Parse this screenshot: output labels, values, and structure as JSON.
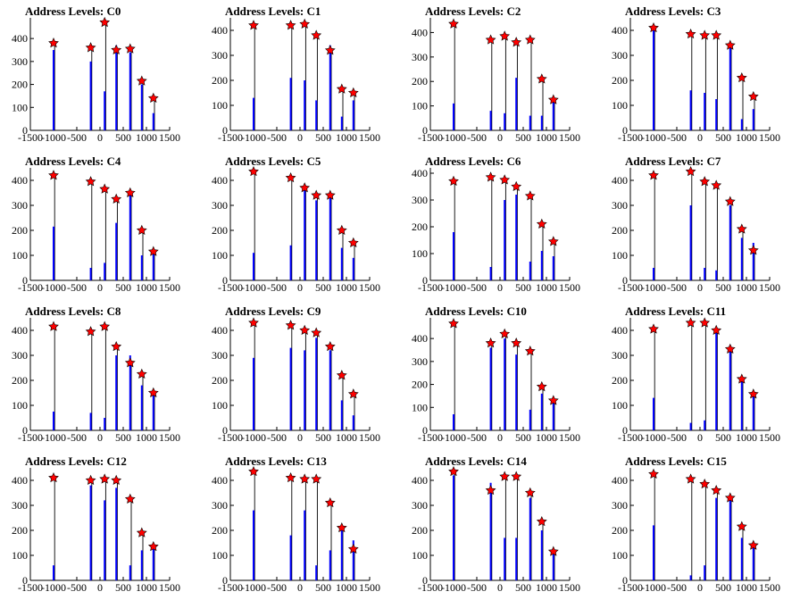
{
  "colors": {
    "bar": "#0000ff",
    "outline": "#000000",
    "marker": "#ff0000",
    "marker_edge": "#000000"
  },
  "marker_icon": "red-star-marker",
  "chart_data": [
    {
      "type": "bar",
      "title": "Address Levels: C0",
      "xlim": [
        -1500,
        1500
      ],
      "xticks": [
        "-1500",
        "-1000",
        "-500",
        "0",
        "500",
        "1000",
        "1500"
      ],
      "ylim": [
        0,
        490
      ],
      "yticks": [
        "0",
        "100",
        "200",
        "300",
        "400"
      ],
      "grid": false,
      "x": [
        -1000,
        -200,
        100,
        350,
        650,
        900,
        1150
      ],
      "peaks": [
        380,
        360,
        470,
        350,
        355,
        215,
        140
      ],
      "blue": [
        350,
        300,
        170,
        370,
        340,
        200,
        75
      ]
    },
    {
      "type": "bar",
      "title": "Address Levels: C1",
      "xlim": [
        -1500,
        1500
      ],
      "xticks": [
        "-1500",
        "-1000",
        "-500",
        "0",
        "500",
        "1000",
        "1500"
      ],
      "ylim": [
        0,
        450
      ],
      "yticks": [
        "0",
        "100",
        "200",
        "300",
        "400"
      ],
      "grid": false,
      "x": [
        -1000,
        -200,
        100,
        350,
        650,
        900,
        1150
      ],
      "peaks": [
        420,
        420,
        425,
        380,
        320,
        165,
        150
      ],
      "blue": [
        130,
        210,
        200,
        120,
        340,
        55,
        120
      ]
    },
    {
      "type": "bar",
      "title": "Address Levels: C2",
      "xlim": [
        -1500,
        1500
      ],
      "xticks": [
        "-1500",
        "-1000",
        "-500",
        "0",
        "500",
        "1000",
        "1500"
      ],
      "ylim": [
        0,
        460
      ],
      "yticks": [
        "0",
        "100",
        "200",
        "300",
        "400"
      ],
      "grid": false,
      "x": [
        -1000,
        -200,
        100,
        350,
        650,
        900,
        1150
      ],
      "peaks": [
        435,
        370,
        385,
        360,
        370,
        210,
        125
      ],
      "blue": [
        110,
        80,
        70,
        215,
        60,
        60,
        120
      ]
    },
    {
      "type": "bar",
      "title": "Address Levels: C3",
      "xlim": [
        -1500,
        1500
      ],
      "xticks": [
        "-1500",
        "-1000",
        "-500",
        "0",
        "500",
        "1000",
        "1500"
      ],
      "ylim": [
        0,
        450
      ],
      "yticks": [
        "0",
        "100",
        "200",
        "300",
        "400"
      ],
      "grid": false,
      "x": [
        -1000,
        -200,
        100,
        350,
        650,
        900,
        1150
      ],
      "peaks": [
        410,
        385,
        380,
        380,
        340,
        210,
        135
      ],
      "blue": [
        400,
        160,
        150,
        125,
        330,
        45,
        85
      ]
    },
    {
      "type": "bar",
      "title": "Address Levels: C4",
      "xlim": [
        -1500,
        1500
      ],
      "xticks": [
        "-1500",
        "-1000",
        "-500",
        "0",
        "500",
        "1000",
        "1500"
      ],
      "ylim": [
        0,
        450
      ],
      "yticks": [
        "0",
        "100",
        "200",
        "300",
        "400"
      ],
      "grid": false,
      "x": [
        -1000,
        -200,
        100,
        350,
        650,
        900,
        1150
      ],
      "peaks": [
        420,
        395,
        365,
        325,
        350,
        200,
        115
      ],
      "blue": [
        215,
        50,
        70,
        230,
        340,
        100,
        110
      ]
    },
    {
      "type": "bar",
      "title": "Address Levels: C5",
      "xlim": [
        -1500,
        1500
      ],
      "xticks": [
        "-1500",
        "-1000",
        "-500",
        "0",
        "500",
        "1000",
        "1500"
      ],
      "ylim": [
        0,
        450
      ],
      "yticks": [
        "0",
        "100",
        "200",
        "300",
        "400"
      ],
      "grid": false,
      "x": [
        -1000,
        -200,
        100,
        350,
        650,
        900,
        1150
      ],
      "peaks": [
        435,
        410,
        370,
        340,
        340,
        200,
        150
      ],
      "blue": [
        110,
        140,
        380,
        320,
        330,
        130,
        90
      ]
    },
    {
      "type": "bar",
      "title": "Address Levels: C6",
      "xlim": [
        -1500,
        1500
      ],
      "xticks": [
        "-1500",
        "-1000",
        "-500",
        "0",
        "500",
        "1000",
        "1500"
      ],
      "ylim": [
        0,
        420
      ],
      "yticks": [
        "0",
        "100",
        "200",
        "300",
        "400"
      ],
      "grid": false,
      "x": [
        -1000,
        -200,
        100,
        350,
        650,
        900,
        1150
      ],
      "peaks": [
        370,
        385,
        375,
        350,
        315,
        210,
        145
      ],
      "blue": [
        180,
        50,
        300,
        320,
        70,
        110,
        90
      ]
    },
    {
      "type": "bar",
      "title": "Address Levels: C7",
      "xlim": [
        -1500,
        1500
      ],
      "xticks": [
        "-1500",
        "-1000",
        "-500",
        "0",
        "500",
        "1000",
        "1500"
      ],
      "ylim": [
        0,
        450
      ],
      "yticks": [
        "0",
        "100",
        "200",
        "300",
        "400"
      ],
      "grid": false,
      "x": [
        -1000,
        -200,
        100,
        350,
        650,
        900,
        1150
      ],
      "peaks": [
        420,
        435,
        395,
        380,
        315,
        205,
        120
      ],
      "blue": [
        50,
        300,
        50,
        40,
        300,
        170,
        150
      ]
    },
    {
      "type": "bar",
      "title": "Address Levels: C8",
      "xlim": [
        -1500,
        1500
      ],
      "xticks": [
        "-1500",
        "-1000",
        "-500",
        "0",
        "500",
        "1000",
        "1500"
      ],
      "ylim": [
        0,
        450
      ],
      "yticks": [
        "0",
        "100",
        "200",
        "300",
        "400"
      ],
      "grid": false,
      "x": [
        -1000,
        -200,
        100,
        350,
        650,
        900,
        1150
      ],
      "peaks": [
        415,
        395,
        415,
        335,
        270,
        225,
        150
      ],
      "blue": [
        75,
        70,
        50,
        300,
        300,
        180,
        140
      ]
    },
    {
      "type": "bar",
      "title": "Address Levels: C9",
      "xlim": [
        -1500,
        1500
      ],
      "xticks": [
        "-1500",
        "-1000",
        "-500",
        "0",
        "500",
        "1000",
        "1500"
      ],
      "ylim": [
        0,
        450
      ],
      "yticks": [
        "0",
        "100",
        "200",
        "300",
        "400"
      ],
      "grid": false,
      "x": [
        -1000,
        -200,
        100,
        350,
        650,
        900,
        1150
      ],
      "peaks": [
        430,
        420,
        400,
        390,
        335,
        220,
        145
      ],
      "blue": [
        290,
        330,
        320,
        370,
        320,
        120,
        60
      ]
    },
    {
      "type": "bar",
      "title": "Address Levels: C10",
      "xlim": [
        -1500,
        1500
      ],
      "xticks": [
        "-1500",
        "-1000",
        "-500",
        "0",
        "500",
        "1000",
        "1500"
      ],
      "ylim": [
        0,
        490
      ],
      "yticks": [
        "0",
        "100",
        "200",
        "300",
        "400"
      ],
      "grid": false,
      "x": [
        -1000,
        -200,
        100,
        350,
        650,
        900,
        1150
      ],
      "peaks": [
        465,
        380,
        420,
        380,
        345,
        190,
        130
      ],
      "blue": [
        70,
        360,
        400,
        330,
        90,
        160,
        130
      ]
    },
    {
      "type": "bar",
      "title": "Address Levels: C11",
      "xlim": [
        -1500,
        1500
      ],
      "xticks": [
        "-1500",
        "-1000",
        "-500",
        "0",
        "500",
        "1000",
        "1500"
      ],
      "ylim": [
        0,
        450
      ],
      "yticks": [
        "0",
        "100",
        "200",
        "300",
        "400"
      ],
      "grid": false,
      "x": [
        -1000,
        -200,
        100,
        350,
        650,
        900,
        1150
      ],
      "peaks": [
        405,
        430,
        430,
        400,
        325,
        205,
        145
      ],
      "blue": [
        130,
        30,
        40,
        390,
        340,
        200,
        140
      ]
    },
    {
      "type": "bar",
      "title": "Address Levels: C12",
      "xlim": [
        -1500,
        1500
      ],
      "xticks": [
        "-1500",
        "-1000",
        "-500",
        "0",
        "500",
        "1000",
        "1500"
      ],
      "ylim": [
        0,
        450
      ],
      "yticks": [
        "0",
        "100",
        "200",
        "300",
        "400"
      ],
      "grid": false,
      "x": [
        -1000,
        -200,
        100,
        350,
        650,
        900,
        1150
      ],
      "peaks": [
        410,
        400,
        405,
        400,
        325,
        190,
        135
      ],
      "blue": [
        60,
        380,
        320,
        370,
        60,
        120,
        130
      ]
    },
    {
      "type": "bar",
      "title": "Address Levels: C13",
      "xlim": [
        -1500,
        1500
      ],
      "xticks": [
        "-1500",
        "-1000",
        "-500",
        "0",
        "500",
        "1000",
        "1500"
      ],
      "ylim": [
        0,
        450
      ],
      "yticks": [
        "0",
        "100",
        "200",
        "300",
        "400"
      ],
      "grid": false,
      "x": [
        -1000,
        -200,
        100,
        350,
        650,
        900,
        1150
      ],
      "peaks": [
        435,
        410,
        405,
        405,
        310,
        210,
        125
      ],
      "blue": [
        280,
        180,
        280,
        60,
        120,
        200,
        160
      ]
    },
    {
      "type": "bar",
      "title": "Address Levels: C14",
      "xlim": [
        -1500,
        1500
      ],
      "xticks": [
        "-1500",
        "-1000",
        "-500",
        "0",
        "500",
        "1000",
        "1500"
      ],
      "ylim": [
        0,
        450
      ],
      "yticks": [
        "0",
        "100",
        "200",
        "300",
        "400"
      ],
      "grid": false,
      "x": [
        -1000,
        -200,
        100,
        350,
        650,
        900,
        1150
      ],
      "peaks": [
        435,
        360,
        415,
        415,
        350,
        235,
        115
      ],
      "blue": [
        420,
        390,
        170,
        170,
        330,
        200,
        110
      ]
    },
    {
      "type": "bar",
      "title": "Address Levels: C15",
      "xlim": [
        -1500,
        1500
      ],
      "xticks": [
        "-1500",
        "-1000",
        "-500",
        "0",
        "500",
        "1000",
        "1500"
      ],
      "ylim": [
        0,
        450
      ],
      "yticks": [
        "0",
        "100",
        "200",
        "300",
        "400"
      ],
      "grid": false,
      "x": [
        -1000,
        -200,
        100,
        350,
        650,
        900,
        1150
      ],
      "peaks": [
        425,
        405,
        385,
        360,
        330,
        215,
        140
      ],
      "blue": [
        220,
        20,
        60,
        330,
        320,
        170,
        130
      ]
    }
  ]
}
